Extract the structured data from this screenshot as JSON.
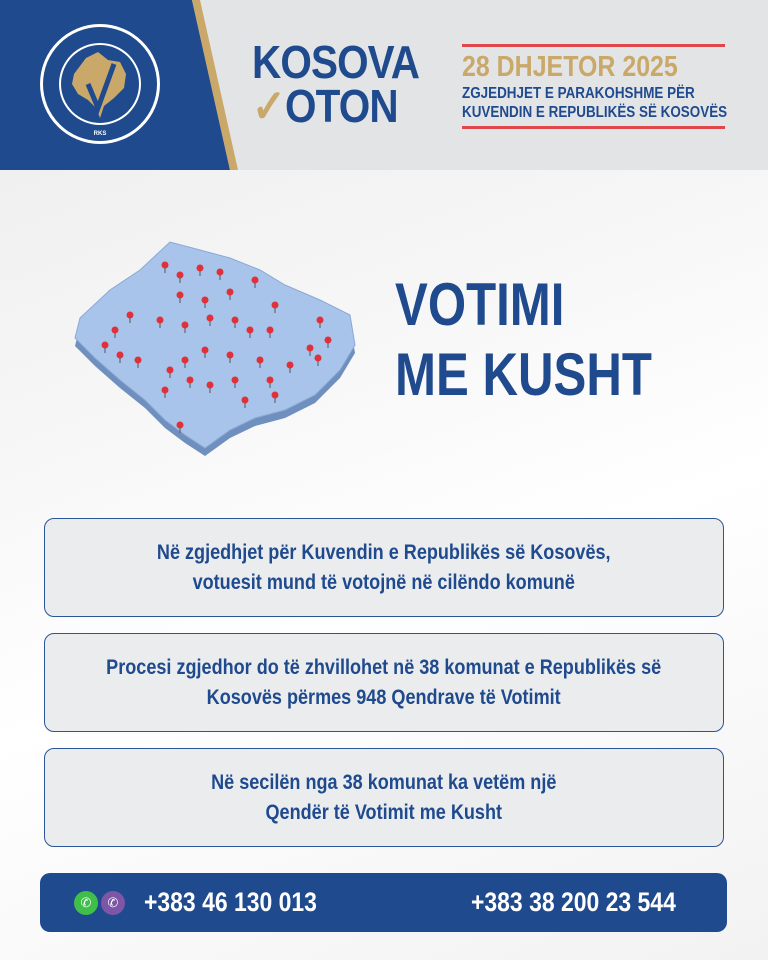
{
  "header": {
    "logo_text": [
      "KOMISIONI QENDROR I ZGJEDHJEVE",
      "CENTRALNA IZBORNA KOMISIJA",
      "CENTRAL ELECTION COMMISSION",
      "RKS"
    ],
    "brand_line1": "KOSOVA",
    "brand_line2": "OTON",
    "date": "28 DHJETOR 2025",
    "subtitle_line1": "ZGJEDHJET E PARAKOHSHME PËR",
    "subtitle_line2": "KUVENDIN E REPUBLIKËS SË KOSOVËS"
  },
  "title": {
    "line1": "VOTIMI",
    "line2": "ME KUSHT"
  },
  "info_boxes": [
    {
      "line1": "Në zgjedhjet për Kuvendin e Republikës së Kosovës,",
      "line2": "votuesit mund të votojnë në cilëndo komunë"
    },
    {
      "line1": "Procesi zgjedhor do të zhvillohet në 38 komunat e Republikës së",
      "line2": "Kosovës përmes 948 Qendrave të Votimit"
    },
    {
      "line1": "Në secilën nga 38 komunat ka vetëm një",
      "line2": "Qendër të Votimit me Kusht"
    }
  ],
  "footer": {
    "phone1": "+383 46 130 013",
    "phone2": "+383 38 200 23 544",
    "icons": [
      "whatsapp-icon",
      "viber-icon"
    ]
  },
  "colors": {
    "brand_blue": "#1f4a8e",
    "gold": "#c9a869",
    "red": "#e0474c",
    "map_blue": "#a9c4ea"
  }
}
